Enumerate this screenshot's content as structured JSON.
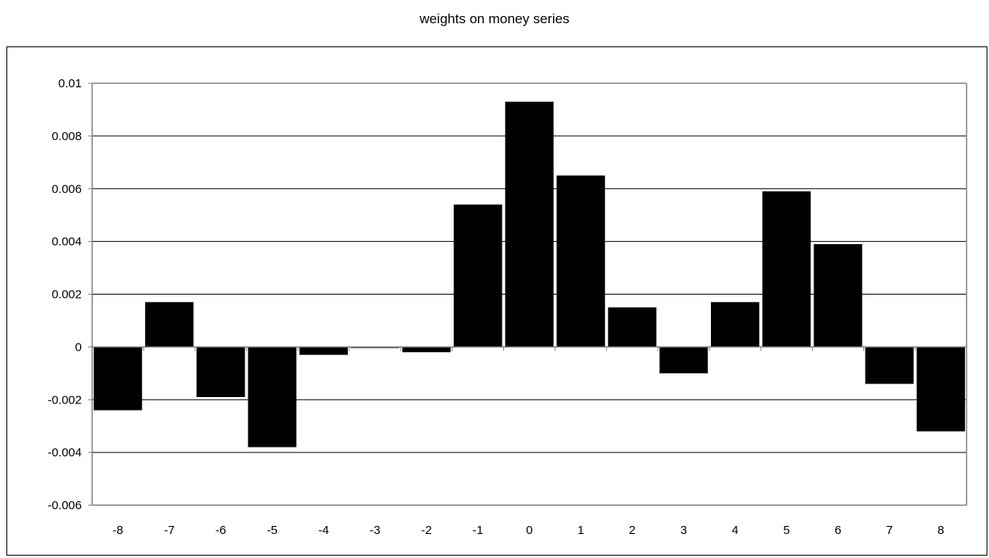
{
  "chart_data": {
    "type": "bar",
    "title": "weights on money series",
    "xlabel": "",
    "ylabel": "",
    "categories": [
      "-8",
      "-7",
      "-6",
      "-5",
      "-4",
      "-3",
      "-2",
      "-1",
      "0",
      "1",
      "2",
      "3",
      "4",
      "5",
      "6",
      "7",
      "8"
    ],
    "values": [
      -0.0024,
      0.0017,
      -0.0019,
      -0.0038,
      -0.0003,
      -4e-05,
      -0.0002,
      0.0054,
      0.0093,
      0.0065,
      0.0015,
      -0.001,
      0.0017,
      0.0059,
      0.0039,
      -0.0014,
      -0.0032
    ],
    "ylim": [
      -0.006,
      0.01
    ],
    "yticks": [
      0.01,
      0.008,
      0.006,
      0.004,
      0.002,
      0,
      -0.002,
      -0.004,
      -0.006
    ],
    "ytick_labels": [
      "0.01",
      "0.008",
      "0.006",
      "0.004",
      "0.002",
      "0",
      "-0.002",
      "-0.004",
      "-0.006"
    ],
    "grid": true,
    "legend": "none",
    "colors": {
      "bar": "#000000",
      "grid": "#000000",
      "axis": "#808080",
      "background": "#ffffff"
    }
  }
}
